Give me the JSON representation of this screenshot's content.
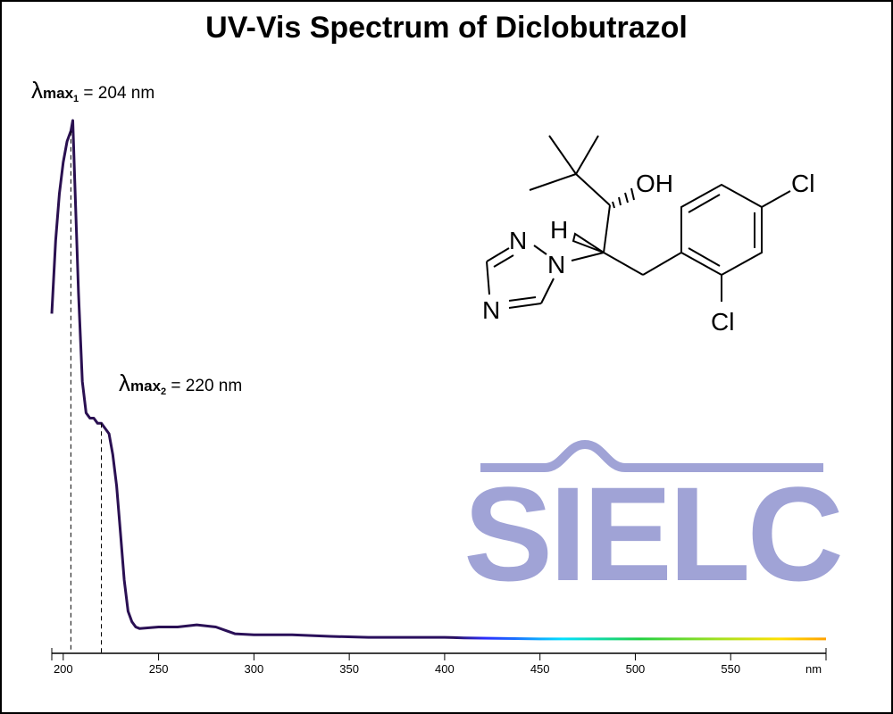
{
  "chart_data": {
    "type": "line",
    "title": "UV-Vis Spectrum of Diclobutrazol",
    "x_unit_label": "nm",
    "x": [
      194,
      196,
      198,
      200,
      202,
      204,
      205,
      206,
      208,
      210,
      212,
      214,
      216,
      218,
      220,
      222,
      224,
      226,
      228,
      230,
      232,
      234,
      236,
      238,
      240,
      250,
      260,
      270,
      280,
      290,
      300,
      320,
      340,
      360,
      400,
      410,
      450,
      500,
      550,
      600
    ],
    "series": [
      {
        "values": [
          0.63,
          0.77,
          0.86,
          0.92,
          0.96,
          0.98,
          1.0,
          0.89,
          0.67,
          0.5,
          0.44,
          0.43,
          0.43,
          0.42,
          0.42,
          0.41,
          0.4,
          0.36,
          0.3,
          0.21,
          0.12,
          0.06,
          0.04,
          0.03,
          0.027,
          0.03,
          0.03,
          0.034,
          0.03,
          0.017,
          0.015,
          0.015,
          0.012,
          0.01,
          0.01,
          0.009,
          0.007,
          0.007,
          0.007,
          0.007
        ]
      }
    ],
    "xlim": [
      194,
      600
    ],
    "ylim": [
      0,
      1.0
    ],
    "xticks": [
      200,
      250,
      300,
      350,
      400,
      450,
      500,
      550
    ],
    "annotations": [
      {
        "symbol": "λ",
        "sub": "max",
        "index": "1",
        "text": " = 204 nm",
        "x": 204
      },
      {
        "symbol": "λ",
        "sub": "max",
        "index": "2",
        "text": " = 220 nm",
        "x": 220
      }
    ]
  },
  "structure_labels": [
    "OH",
    "H",
    "N",
    "N",
    "N",
    "Cl",
    "Cl"
  ],
  "watermark": "SIELC"
}
